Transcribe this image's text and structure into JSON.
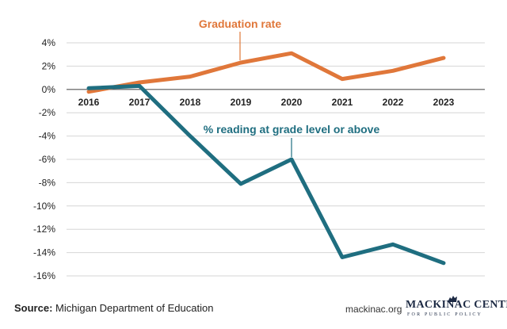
{
  "chart_data": {
    "type": "line",
    "x": [
      "2016",
      "2017",
      "2018",
      "2019",
      "2020",
      "2021",
      "2022",
      "2023"
    ],
    "series": [
      {
        "name": "Graduation rate",
        "color": "#e0773a",
        "values": [
          -0.2,
          0.6,
          1.1,
          2.3,
          3.1,
          0.9,
          1.6,
          2.7
        ]
      },
      {
        "name": "% reading at grade level or above",
        "color": "#1f6e80",
        "values": [
          0.1,
          0.3,
          -4.0,
          -8.1,
          -6.0,
          -14.4,
          -13.3,
          -14.9
        ]
      }
    ],
    "ylim": [
      -16,
      4
    ],
    "yticks": [
      4,
      2,
      0,
      -2,
      -4,
      -6,
      -8,
      -10,
      -12,
      -14,
      -16
    ],
    "ytick_labels": [
      "4%",
      "2%",
      "0%",
      "-2%",
      "-4%",
      "-6%",
      "-8%",
      "-10%",
      "-12%",
      "-14%",
      "-16%"
    ],
    "grid": true,
    "xlabel": "",
    "ylabel": ""
  },
  "footer": {
    "source_label": "Source:",
    "source_text": " Michigan Department of Education",
    "website": "mackinac.org",
    "logo_name": "MACKINAC CENTER",
    "logo_tagline": "FOR PUBLIC POLICY"
  },
  "colors": {
    "gridline": "#d6d6d6",
    "axis": "#555555",
    "text": "#222222"
  }
}
